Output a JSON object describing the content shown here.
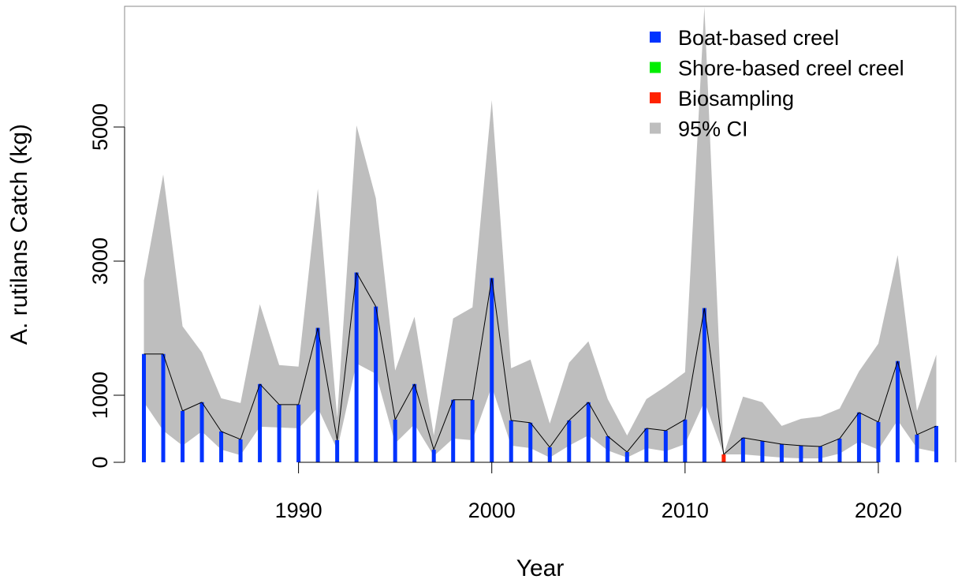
{
  "chart_data": {
    "type": "bar",
    "x_label": "Year",
    "y_label": "A. rutilans Catch (kg)",
    "x": [
      1982,
      1983,
      1984,
      1985,
      1986,
      1987,
      1988,
      1989,
      1990,
      1991,
      1992,
      1993,
      1994,
      1995,
      1996,
      1997,
      1998,
      1999,
      2000,
      2001,
      2002,
      2003,
      2004,
      2005,
      2006,
      2007,
      2008,
      2009,
      2010,
      2011,
      2012,
      2013,
      2014,
      2015,
      2016,
      2017,
      2018,
      2019,
      2020,
      2021,
      2022,
      2023
    ],
    "series": [
      {
        "name": "Boat-based creel",
        "color": "#0033ff",
        "values": [
          1615,
          1615,
          766,
          896,
          460,
          342,
          1167,
          861,
          861,
          2005,
          330,
          2830,
          2323,
          637,
          1167,
          189,
          932,
          932,
          2748,
          625,
          590,
          224,
          625,
          896,
          389,
          153,
          507,
          472,
          637,
          2300,
          0,
          366,
          318,
          271,
          248,
          236,
          354,
          743,
          601,
          1509,
          413,
          542
        ]
      },
      {
        "name": "Shore-based creel creel",
        "color": "#00ee00",
        "values": [
          0,
          0,
          0,
          0,
          0,
          0,
          0,
          0,
          0,
          0,
          0,
          0,
          0,
          0,
          0,
          0,
          0,
          0,
          0,
          0,
          0,
          0,
          0,
          0,
          0,
          0,
          0,
          0,
          0,
          0,
          0,
          0,
          0,
          0,
          0,
          0,
          0,
          0,
          0,
          0,
          0,
          0
        ]
      },
      {
        "name": "Biosampling",
        "color": "#ff2200",
        "values": [
          0,
          0,
          0,
          0,
          0,
          0,
          0,
          0,
          0,
          0,
          0,
          0,
          0,
          0,
          0,
          0,
          0,
          0,
          0,
          0,
          0,
          0,
          0,
          0,
          0,
          0,
          0,
          0,
          0,
          0,
          118,
          0,
          0,
          0,
          0,
          0,
          0,
          0,
          0,
          0,
          0,
          0
        ]
      }
    ],
    "ci": {
      "name": "95% CI",
      "color": "#bebebe",
      "upper": [
        2712,
        4292,
        2028,
        1639,
        955,
        884,
        2358,
        1450,
        1427,
        4080,
        660,
        5024,
        3939,
        1368,
        2170,
        400,
        2146,
        2311,
        5401,
        1403,
        1533,
        578,
        1486,
        1804,
        943,
        400,
        943,
        1132,
        1344,
        6792,
        118,
        979,
        896,
        542,
        649,
        684,
        802,
        1356,
        1769,
        3090,
        766,
        1604
      ],
      "lower": [
        896,
        472,
        248,
        460,
        189,
        106,
        531,
        519,
        507,
        814,
        189,
        1474,
        1321,
        283,
        566,
        94,
        354,
        330,
        1132,
        248,
        212,
        71,
        248,
        401,
        177,
        71,
        212,
        165,
        271,
        908,
        118,
        118,
        94,
        71,
        59,
        59,
        130,
        307,
        189,
        625,
        212,
        153
      ]
    },
    "xlim": [
      1981,
      2024
    ],
    "ylim": [
      0,
      6800
    ],
    "xticks": [
      1990,
      2000,
      2010,
      2020
    ],
    "yticks": [
      0,
      1000,
      3000,
      5000
    ],
    "legend": "top-right"
  }
}
